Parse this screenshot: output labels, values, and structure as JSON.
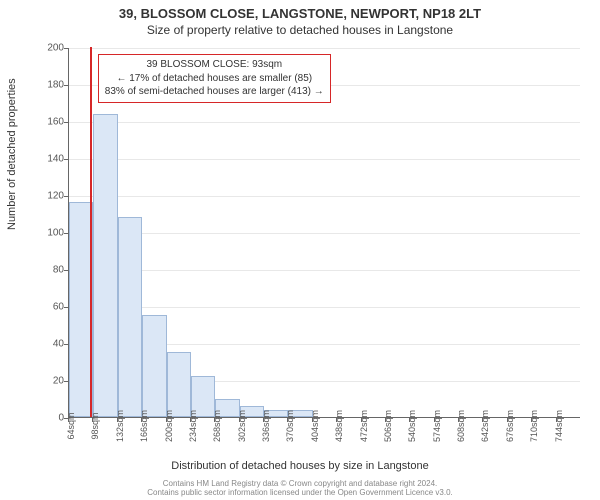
{
  "title": "39, BLOSSOM CLOSE, LANGSTONE, NEWPORT, NP18 2LT",
  "subtitle": "Size of property relative to detached houses in Langstone",
  "ylabel": "Number of detached properties",
  "xlabel": "Distribution of detached houses by size in Langstone",
  "chart": {
    "type": "histogram",
    "y": {
      "min": 0,
      "max": 200,
      "tick_step": 20
    },
    "x": {
      "start": 64,
      "step": 34,
      "count": 21,
      "unit": "sqm"
    },
    "bars": [
      116,
      164,
      108,
      55,
      35,
      22,
      10,
      6,
      4,
      4,
      0,
      0,
      0,
      0,
      0,
      0,
      0,
      0,
      0,
      0,
      0
    ],
    "bar_fill": "#dbe7f6",
    "bar_stroke": "#9fb8d8",
    "grid_color": "#e8e8e8",
    "background": "#ffffff",
    "marker": {
      "x_value": 93,
      "color": "#d62728",
      "width": 2
    },
    "annotation": {
      "lines": [
        "39 BLOSSOM CLOSE: 93sqm",
        "← 17% of detached houses are smaller (85)",
        "83% of semi-detached houses are larger (413) →"
      ],
      "border_color": "#d62728"
    }
  },
  "footer": {
    "line1": "Contains HM Land Registry data © Crown copyright and database right 2024.",
    "line2": "Contains public sector information licensed under the Open Government Licence v3.0."
  }
}
